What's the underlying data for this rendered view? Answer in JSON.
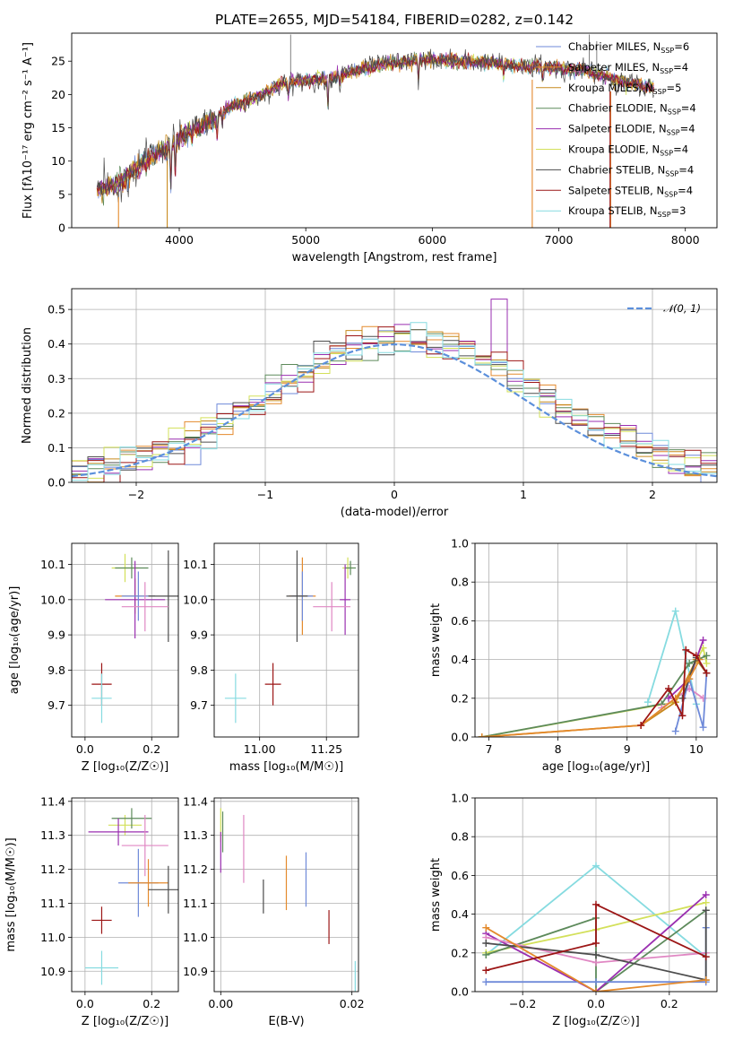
{
  "colors": {
    "chabrier_miles": "#6f8ad9",
    "salpeter_miles": "#e48a2c",
    "kroupa_miles": "#c78a1e",
    "chabrier_elodie": "#5d8a5b",
    "salpeter_elodie": "#9a2fb0",
    "kroupa_elodie": "#d3e05a",
    "chabrier_stelib": "#4d4d4d",
    "salpeter_stelib": "#9c1616",
    "kroupa_stelib": "#86dbe0",
    "pink": "#e087c3",
    "normal_curve": "#5b8fdb"
  },
  "chart_data": [
    {
      "type": "line",
      "id": "spectrum",
      "title": "PLATE=2655, MJD=54184, FIBERID=0282, z=0.142",
      "xlabel": "wavelength [Angstrom, rest frame]",
      "ylabel": "Flux [fλ10⁻¹⁷ erg cm⁻² s⁻¹ A⁻¹]",
      "xlim": [
        3150,
        8250
      ],
      "ylim": [
        0,
        29.2
      ],
      "xticks": [
        "4000",
        "5000",
        "6000",
        "7000",
        "8000"
      ],
      "yticks": [
        "0",
        "5",
        "10",
        "15",
        "20",
        "25"
      ],
      "grid": false,
      "legend_position": "top-right",
      "data_range_x": [
        3350,
        7750
      ],
      "envelope_x": [
        3350,
        3500,
        3700,
        3900,
        4000,
        4200,
        4400,
        4600,
        4800,
        5000,
        5200,
        5400,
        5600,
        5800,
        6000,
        6200,
        6400,
        6600,
        6800,
        7000,
        7200,
        7400,
        7600,
        7750
      ],
      "envelope_y": [
        6.0,
        6.3,
        9.5,
        12.0,
        13.5,
        15.5,
        18.0,
        19.5,
        21.5,
        22.0,
        22.5,
        23.5,
        24.5,
        25.0,
        25.2,
        25.0,
        24.8,
        24.5,
        24.2,
        24.0,
        23.5,
        22.5,
        21.5,
        21.0
      ],
      "absorption_lines": [
        {
          "x": 3934,
          "depth": 6.0
        },
        {
          "x": 3969,
          "depth": 5.0
        },
        {
          "x": 4101,
          "depth": 1.5
        },
        {
          "x": 4300,
          "depth": 2.5
        },
        {
          "x": 4340,
          "depth": 2.0
        },
        {
          "x": 4861,
          "depth": 1.8
        },
        {
          "x": 5175,
          "depth": 4.0
        },
        {
          "x": 5270,
          "depth": 1.5
        },
        {
          "x": 5890,
          "depth": 3.0
        },
        {
          "x": 6563,
          "depth": 1.5
        },
        {
          "x": 6870,
          "depth": 2.0
        }
      ],
      "series": [
        {
          "name": "Chabrier MILES, N_SSP=6",
          "color": "#6f8ad9"
        },
        {
          "name": "Salpeter MILES, N_SSP=4",
          "color": "#e48a2c"
        },
        {
          "name": "Kroupa MILES, N_SSP=5",
          "color": "#c78a1e"
        },
        {
          "name": "Chabrier ELODIE, N_SSP=4",
          "color": "#5d8a5b"
        },
        {
          "name": "Salpeter ELODIE, N_SSP=4",
          "color": "#9a2fb0"
        },
        {
          "name": "Kroupa ELODIE, N_SSP=4",
          "color": "#d3e05a"
        },
        {
          "name": "Chabrier STELIB, N_SSP=4",
          "color": "#4d4d4d"
        },
        {
          "name": "Salpeter STELIB, N_SSP=4",
          "color": "#9c1616"
        },
        {
          "name": "Kroupa STELIB, N_SSP=3",
          "color": "#86dbe0"
        }
      ],
      "legend": {
        "prefixes": [
          "Chabrier MILES, N",
          "Salpeter MILES, N",
          "Kroupa MILES, N",
          "Chabrier ELODIE, N",
          "Salpeter ELODIE, N",
          "Kroupa ELODIE, N",
          "Chabrier STELIB, N",
          "Salpeter STELIB, N",
          "Kroupa STELIB, N"
        ],
        "subscript": "SSP",
        "suffixes": [
          "=6",
          "=4",
          "=5",
          "=4",
          "=4",
          "=4",
          "=4",
          "=4",
          "=3"
        ]
      }
    },
    {
      "type": "histogram",
      "id": "residuals",
      "xlabel": "(data-model)/error",
      "ylabel": "Normed distribution",
      "xlim": [
        -2.5,
        2.5
      ],
      "ylim": [
        0,
        0.56
      ],
      "xticks": [
        "−2",
        "−1",
        "0",
        "1",
        "2"
      ],
      "yticks": [
        "0.0",
        "0.1",
        "0.2",
        "0.3",
        "0.4",
        "0.5"
      ],
      "grid": true,
      "bins": 40,
      "reference_curve": {
        "name": "𝒩(0, 1)",
        "mean": 0,
        "sigma": 1,
        "color": "#5b8fdb",
        "style": "dashed"
      },
      "peak_values": {
        "salpeter_elodie": 0.53,
        "kroupa_elodie": 0.47,
        "chabrier_miles": 0.47
      },
      "legend_position": "top-right"
    },
    {
      "type": "errorbar",
      "id": "age_vs_Z",
      "xlabel": "Z [log₁₀(Z/Z☉)]",
      "ylabel": "age  [log₁₀(age/yr)]",
      "xlim": [
        -0.04,
        0.28
      ],
      "ylim": [
        9.61,
        10.16
      ],
      "xticks": [
        "0.0",
        "0.2"
      ],
      "yticks": [
        "9.7",
        "9.8",
        "9.9",
        "10.0",
        "10.1"
      ],
      "grid": true,
      "points": [
        {
          "x": 0.12,
          "xerr": 0.04,
          "y": 10.09,
          "yerr": 0.04,
          "color": "#d3e05a"
        },
        {
          "x": 0.14,
          "xerr": 0.05,
          "y": 10.09,
          "yerr": 0.03,
          "color": "#5d8a5b"
        },
        {
          "x": 0.15,
          "xerr": 0.06,
          "y": 10.01,
          "yerr": 0.05,
          "color": "#e48a2c"
        },
        {
          "x": 0.15,
          "xerr": 0.09,
          "y": 10.0,
          "yerr": 0.11,
          "color": "#9a2fb0"
        },
        {
          "x": 0.16,
          "xerr": 0.05,
          "y": 10.01,
          "yerr": 0.07,
          "color": "#6f8ad9"
        },
        {
          "x": 0.25,
          "xerr": 0.06,
          "y": 10.01,
          "yerr": 0.13,
          "color": "#4d4d4d"
        },
        {
          "x": 0.18,
          "xerr": 0.07,
          "y": 9.98,
          "yerr": 0.07,
          "color": "#e087c3"
        },
        {
          "x": 0.05,
          "xerr": 0.03,
          "y": 9.76,
          "yerr": 0.06,
          "color": "#9c1616"
        },
        {
          "x": 0.05,
          "xerr": 0.03,
          "y": 9.72,
          "yerr": 0.07,
          "color": "#86dbe0"
        }
      ]
    },
    {
      "type": "errorbar",
      "id": "age_vs_mass",
      "xlabel": "mass [log₁₀(M/M☉)]",
      "ylabel": "",
      "xlim": [
        10.83,
        11.37
      ],
      "ylim": [
        9.61,
        10.16
      ],
      "xticks": [
        "11.00",
        "11.25"
      ],
      "yticks": [
        "9.7",
        "9.8",
        "9.9",
        "10.0",
        "10.1"
      ],
      "grid": true,
      "points": [
        {
          "x": 11.33,
          "xerr": 0.02,
          "y": 10.09,
          "yerr": 0.03,
          "color": "#d3e05a"
        },
        {
          "x": 11.34,
          "xerr": 0.02,
          "y": 10.09,
          "yerr": 0.02,
          "color": "#5d8a5b"
        },
        {
          "x": 11.16,
          "xerr": 0.05,
          "y": 10.01,
          "yerr": 0.11,
          "color": "#e48a2c"
        },
        {
          "x": 11.32,
          "xerr": 0.02,
          "y": 10.0,
          "yerr": 0.1,
          "color": "#9a2fb0"
        },
        {
          "x": 11.16,
          "xerr": 0.04,
          "y": 10.01,
          "yerr": 0.07,
          "color": "#6f8ad9"
        },
        {
          "x": 11.14,
          "xerr": 0.04,
          "y": 10.01,
          "yerr": 0.13,
          "color": "#4d4d4d"
        },
        {
          "x": 11.27,
          "xerr": 0.07,
          "y": 9.98,
          "yerr": 0.07,
          "color": "#e087c3"
        },
        {
          "x": 11.05,
          "xerr": 0.03,
          "y": 9.76,
          "yerr": 0.06,
          "color": "#9c1616"
        },
        {
          "x": 10.91,
          "xerr": 0.04,
          "y": 9.72,
          "yerr": 0.07,
          "color": "#86dbe0"
        }
      ]
    },
    {
      "type": "line",
      "id": "mass_weight_vs_age",
      "xlabel": "age  [log₁₀(age/yr)]",
      "ylabel": "mass weight",
      "xlim": [
        6.8,
        10.3
      ],
      "ylim": [
        0,
        1.0
      ],
      "xticks": [
        "7",
        "8",
        "9",
        "10"
      ],
      "yticks": [
        "0.0",
        "0.2",
        "0.4",
        "0.6",
        "0.8",
        "1.0"
      ],
      "grid": true,
      "series": [
        {
          "color": "#86dbe0",
          "x": [
            9.3,
            9.7,
            10.0
          ],
          "y": [
            0.18,
            0.65,
            0.17
          ]
        },
        {
          "color": "#d3e05a",
          "x": [
            6.9,
            9.7,
            10.1,
            10.15
          ],
          "y": [
            0.0,
            0.18,
            0.46,
            0.38
          ]
        },
        {
          "color": "#5d8a5b",
          "x": [
            6.9,
            9.5,
            9.9,
            10.15
          ],
          "y": [
            0.0,
            0.17,
            0.38,
            0.42
          ]
        },
        {
          "color": "#9a2fb0",
          "x": [
            9.6,
            9.9,
            10.1
          ],
          "y": [
            0.2,
            0.3,
            0.5
          ]
        },
        {
          "color": "#e087c3",
          "x": [
            9.5,
            9.9,
            10.1
          ],
          "y": [
            0.15,
            0.25,
            0.2
          ]
        },
        {
          "color": "#c78a1e",
          "x": [
            6.9,
            9.2,
            9.7,
            10.0,
            10.15
          ],
          "y": [
            0.0,
            0.06,
            0.18,
            0.4,
            0.33
          ]
        },
        {
          "color": "#6f8ad9",
          "x": [
            9.7,
            9.9,
            10.1,
            10.15
          ],
          "y": [
            0.03,
            0.3,
            0.05,
            0.33
          ]
        },
        {
          "color": "#4d4d4d",
          "x": [
            9.8,
            10.0,
            10.15
          ],
          "y": [
            0.2,
            0.41,
            0.33
          ]
        },
        {
          "color": "#e48a2c",
          "x": [
            6.9,
            9.2,
            9.7,
            9.9,
            10.05
          ],
          "y": [
            0.0,
            0.06,
            0.2,
            0.3,
            0.4
          ]
        },
        {
          "color": "#9c1616",
          "x": [
            9.2,
            9.6,
            9.8,
            9.85,
            10.0,
            10.15
          ],
          "y": [
            0.06,
            0.25,
            0.11,
            0.45,
            0.42,
            0.33
          ]
        }
      ]
    },
    {
      "type": "errorbar",
      "id": "mass_vs_Z",
      "xlabel": "Z [log₁₀(Z/Z☉)]",
      "ylabel": "mass [log₁₀(M/M☉)]",
      "xlim": [
        -0.04,
        0.28
      ],
      "ylim": [
        10.84,
        11.41
      ],
      "xticks": [
        "0.0",
        "0.2"
      ],
      "yticks": [
        "10.9",
        "11.0",
        "11.1",
        "11.2",
        "11.3",
        "11.4"
      ],
      "grid": true,
      "points": [
        {
          "x": 0.12,
          "xerr": 0.05,
          "y": 11.33,
          "yerr": 0.03,
          "color": "#d3e05a"
        },
        {
          "x": 0.14,
          "xerr": 0.06,
          "y": 11.35,
          "yerr": 0.03,
          "color": "#5d8a5b"
        },
        {
          "x": 0.1,
          "xerr": 0.09,
          "y": 11.31,
          "yerr": 0.04,
          "color": "#9a2fb0"
        },
        {
          "x": 0.18,
          "xerr": 0.07,
          "y": 11.27,
          "yerr": 0.09,
          "color": "#e087c3"
        },
        {
          "x": 0.16,
          "xerr": 0.06,
          "y": 11.16,
          "yerr": 0.1,
          "color": "#6f8ad9"
        },
        {
          "x": 0.19,
          "xerr": 0.06,
          "y": 11.16,
          "yerr": 0.07,
          "color": "#e48a2c"
        },
        {
          "x": 0.25,
          "xerr": 0.06,
          "y": 11.14,
          "yerr": 0.07,
          "color": "#4d4d4d"
        },
        {
          "x": 0.05,
          "xerr": 0.03,
          "y": 11.05,
          "yerr": 0.04,
          "color": "#9c1616"
        },
        {
          "x": 0.05,
          "xerr": 0.05,
          "y": 10.91,
          "yerr": 0.05,
          "color": "#86dbe0"
        }
      ]
    },
    {
      "type": "errorbar",
      "id": "mass_vs_ebv",
      "xlabel": "E(B-V)",
      "ylabel": "",
      "xlim": [
        -0.001,
        0.021
      ],
      "ylim": [
        10.84,
        11.41
      ],
      "xticks": [
        "0.00",
        "0.02"
      ],
      "yticks": [
        "10.9",
        "11.0",
        "11.1",
        "11.2",
        "11.3",
        "11.4"
      ],
      "grid": true,
      "points": [
        {
          "x": 0.0,
          "y": 11.33,
          "yerr": 0.05,
          "color": "#d3e05a"
        },
        {
          "x": 0.0003,
          "y": 11.31,
          "yerr": 0.06,
          "color": "#5d8a5b"
        },
        {
          "x": 0.0,
          "y": 11.25,
          "yerr": 0.06,
          "color": "#9a2fb0"
        },
        {
          "x": 0.0035,
          "y": 11.26,
          "yerr": 0.1,
          "color": "#e087c3"
        },
        {
          "x": 0.0065,
          "y": 11.12,
          "yerr": 0.05,
          "color": "#4d4d4d"
        },
        {
          "x": 0.01,
          "y": 11.16,
          "yerr": 0.08,
          "color": "#e48a2c"
        },
        {
          "x": 0.013,
          "y": 11.17,
          "yerr": 0.08,
          "color": "#6f8ad9"
        },
        {
          "x": 0.0165,
          "y": 11.03,
          "yerr": 0.05,
          "color": "#9c1616"
        },
        {
          "x": 0.0205,
          "y": 10.88,
          "yerr": 0.05,
          "color": "#86dbe0"
        }
      ]
    },
    {
      "type": "line",
      "id": "mass_weight_vs_Z",
      "xlabel": "Z [log₁₀(Z/Z☉)]",
      "ylabel": "mass weight",
      "xlim": [
        -0.33,
        0.33
      ],
      "ylim": [
        0,
        1.0
      ],
      "xticks": [
        "−0.2",
        "0.0",
        "0.2"
      ],
      "yticks": [
        "0.0",
        "0.2",
        "0.4",
        "0.6",
        "0.8",
        "1.0"
      ],
      "grid": true,
      "series": [
        {
          "color": "#86dbe0",
          "x": [
            -0.3,
            0.0,
            0.3
          ],
          "y": [
            0.19,
            0.65,
            0.18
          ]
        },
        {
          "color": "#d3e05a",
          "x": [
            -0.3,
            0.0,
            0.3
          ],
          "y": [
            0.2,
            0.32,
            0.46
          ]
        },
        {
          "color": "#5d8a5b",
          "x": [
            -0.3,
            0.0,
            0.0,
            0.3
          ],
          "y": [
            0.19,
            0.38,
            0.0,
            0.42
          ]
        },
        {
          "color": "#9a2fb0",
          "x": [
            -0.3,
            0.0,
            0.3
          ],
          "y": [
            0.3,
            0.0,
            0.5
          ]
        },
        {
          "color": "#e087c3",
          "x": [
            -0.3,
            0.0,
            0.3
          ],
          "y": [
            0.28,
            0.15,
            0.2
          ]
        },
        {
          "color": "#6f8ad9",
          "x": [
            -0.3,
            0.0,
            0.3,
            0.3
          ],
          "y": [
            0.05,
            0.05,
            0.05,
            0.33
          ]
        },
        {
          "color": "#4d4d4d",
          "x": [
            -0.3,
            0.0,
            0.3,
            0.3
          ],
          "y": [
            0.25,
            0.19,
            0.06,
            0.42
          ]
        },
        {
          "color": "#e48a2c",
          "x": [
            -0.3,
            0.0,
            0.3
          ],
          "y": [
            0.33,
            0.0,
            0.06
          ]
        },
        {
          "color": "#9c1616",
          "x": [
            -0.3,
            0.0,
            0.0,
            0.3
          ],
          "y": [
            0.11,
            0.25,
            0.45,
            0.18
          ]
        }
      ]
    }
  ]
}
